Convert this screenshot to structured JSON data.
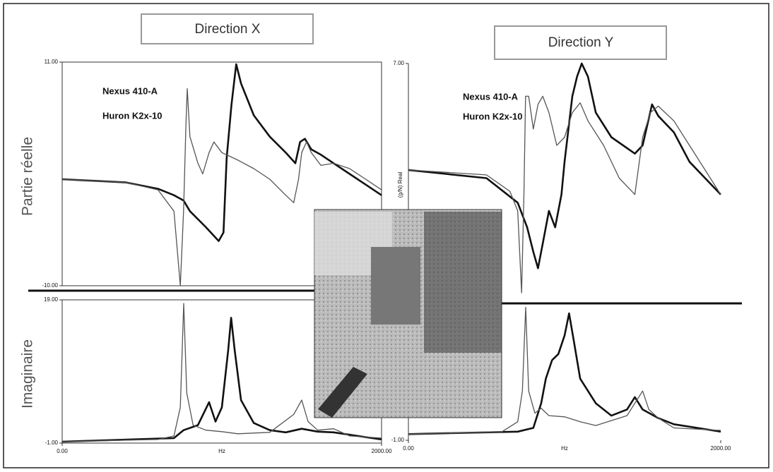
{
  "chart_data": [
    {
      "type": "line",
      "title": "Direction X",
      "ylabel": "Partie réelle",
      "xlim": [
        0,
        2000
      ],
      "ylim": [
        -10,
        11
      ],
      "yticks": [
        {
          "value": 11,
          "label": "11.00"
        },
        {
          "value": -10,
          "label": "-10.00"
        }
      ],
      "series": [
        {
          "name": "Nexus 410-A",
          "color": "#111111",
          "x": [
            0,
            400,
            600,
            700,
            760,
            800,
            900,
            980,
            1010,
            1030,
            1060,
            1090,
            1120,
            1200,
            1300,
            1400,
            1460,
            1490,
            1520,
            1560,
            1620,
            1700,
            1800,
            1900,
            2000
          ],
          "values": [
            0,
            -0.3,
            -0.9,
            -1.5,
            -2,
            -3,
            -4.5,
            -5.8,
            -5,
            2,
            7,
            10.8,
            9,
            6,
            4,
            2.5,
            1.5,
            3.5,
            3.8,
            2.8,
            2.3,
            1.5,
            0.5,
            -0.5,
            -1.5
          ]
        },
        {
          "name": "Huron K2x-10",
          "color": "#555555",
          "x": [
            0,
            400,
            600,
            700,
            740,
            760,
            775,
            783,
            800,
            850,
            880,
            920,
            950,
            1000,
            1100,
            1200,
            1300,
            1400,
            1450,
            1480,
            1500,
            1530,
            1560,
            1620,
            1700,
            1800,
            1900,
            2000
          ],
          "values": [
            0,
            -0.3,
            -1,
            -3,
            -10,
            -3,
            5,
            8.5,
            4,
            1.5,
            0.5,
            2.5,
            3.5,
            2.5,
            1.8,
            1,
            0,
            -1.5,
            -2.2,
            0,
            2.5,
            3.5,
            2.5,
            1.3,
            1.5,
            1,
            0,
            -1
          ]
        }
      ]
    },
    {
      "type": "line",
      "ylabel": "Imaginaire",
      "xlabel": "Hz",
      "xlim": [
        0,
        2000
      ],
      "ylim": [
        -1,
        19
      ],
      "xticks": [
        {
          "value": 0,
          "label": "0.00"
        },
        {
          "value": 2000,
          "label": "2000.00"
        }
      ],
      "yticks": [
        {
          "value": 19,
          "label": "19.00"
        },
        {
          "value": -1,
          "label": "-1.00"
        }
      ],
      "series": [
        {
          "color": "#111111",
          "x": [
            0,
            700,
            760,
            850,
            920,
            960,
            1000,
            1040,
            1058,
            1080,
            1120,
            1200,
            1300,
            1400,
            1500,
            1600,
            1700,
            2000
          ],
          "values": [
            -0.8,
            -0.3,
            0.8,
            1.5,
            4.7,
            2,
            4,
            12,
            16.5,
            12,
            5,
            1.8,
            0.8,
            0.5,
            1,
            0.6,
            0.5,
            -0.5
          ]
        },
        {
          "color": "#555555",
          "x": [
            0,
            600,
            700,
            740,
            761,
            780,
            820,
            900,
            1000,
            1100,
            1300,
            1450,
            1500,
            1540,
            1600,
            1700,
            1800,
            2000
          ],
          "values": [
            -0.8,
            -0.5,
            0,
            4,
            18.5,
            6,
            1.5,
            0.8,
            0.6,
            0.3,
            0.5,
            3,
            5,
            2,
            0.8,
            1,
            0,
            -0.3
          ]
        }
      ]
    },
    {
      "type": "line",
      "title": "Direction Y",
      "ylabel": "(g/N) Real",
      "xlim": [
        0,
        2000
      ],
      "ylim": [
        -7,
        7
      ],
      "yticks": [
        {
          "value": 7,
          "label": "7.00"
        }
      ],
      "series": [
        {
          "name": "Nexus 410-A",
          "color": "#111111",
          "x": [
            0,
            500,
            700,
            760,
            800,
            830,
            860,
            900,
            940,
            980,
            1000,
            1050,
            1080,
            1110,
            1150,
            1200,
            1300,
            1450,
            1500,
            1560,
            1600,
            1700,
            1800,
            1900,
            2000
          ],
          "values": [
            0.5,
            0,
            -1.5,
            -3,
            -4.5,
            -5.5,
            -4,
            -2,
            -3,
            -1,
            1,
            5,
            6.2,
            7,
            6.2,
            4,
            2.5,
            1.5,
            2,
            4.5,
            3.8,
            2.8,
            1,
            0,
            -1
          ]
        },
        {
          "name": "Huron K2x-10",
          "color": "#555555",
          "x": [
            0,
            500,
            650,
            700,
            725,
            740,
            750,
            770,
            800,
            830,
            860,
            900,
            950,
            1000,
            1050,
            1100,
            1150,
            1250,
            1350,
            1450,
            1500,
            1550,
            1600,
            1700,
            1800,
            1900,
            2000
          ],
          "values": [
            0.5,
            0.2,
            -0.8,
            -2,
            -7,
            -1,
            5,
            5,
            3,
            4.5,
            5,
            4,
            2,
            2.5,
            4,
            4.6,
            3.5,
            2,
            0,
            -1,
            2.5,
            4,
            4.4,
            3.5,
            2,
            0.5,
            -1
          ]
        }
      ]
    },
    {
      "type": "line",
      "xlabel": "Hz",
      "xlim": [
        0,
        2000
      ],
      "ylim": [
        -1,
        10
      ],
      "xticks": [
        {
          "value": 0,
          "label": "0.00"
        },
        {
          "value": 2000,
          "label": "2000.00"
        }
      ],
      "yticks": [
        {
          "value": -1,
          "label": "-1.00"
        }
      ],
      "series": [
        {
          "color": "#111111",
          "x": [
            0,
            700,
            800,
            850,
            880,
            920,
            960,
            1000,
            1029,
            1060,
            1100,
            1200,
            1300,
            1400,
            1450,
            1500,
            1600,
            1700,
            2000
          ],
          "values": [
            -0.5,
            -0.3,
            0,
            2,
            4,
            5.5,
            6,
            7.5,
            9.3,
            7,
            4,
            2,
            1,
            1.5,
            2.5,
            1.5,
            0.8,
            0.3,
            -0.3
          ]
        },
        {
          "color": "#555555",
          "x": [
            0,
            600,
            700,
            730,
            751,
            770,
            810,
            850,
            900,
            1000,
            1100,
            1200,
            1400,
            1500,
            1540,
            1600,
            1700,
            2000
          ],
          "values": [
            -0.5,
            -0.3,
            0.5,
            3,
            9.8,
            3,
            1.2,
            1.6,
            1,
            0.9,
            0.5,
            0.2,
            1,
            3,
            1.5,
            0.8,
            0,
            -0.2
          ]
        }
      ]
    }
  ]
}
